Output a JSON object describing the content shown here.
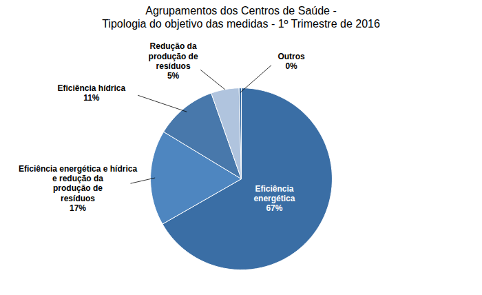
{
  "chart_data": {
    "type": "pie",
    "title": "Agrupamentos dos Centros de Saúde -\nTipologia do objetivo das medidas - 1º Trimestre de 2016",
    "categories": [
      "Eficiência\nenergética",
      "Eficiência energética e hídrica\ne redução da\nprodução de\nresíduos",
      "Eficiência hídrica",
      "Redução da\nprodução de\nresíduos",
      "Outros"
    ],
    "values": [
      67,
      17,
      11,
      5,
      0.4
    ],
    "value_labels": [
      "67%",
      "17%",
      "11%",
      "5%",
      "0%"
    ],
    "colors": [
      "#3A6EA5",
      "#4E86C0",
      "#4878AB",
      "#B0C4DE",
      "#3A6EA5"
    ],
    "data_labels": true
  }
}
